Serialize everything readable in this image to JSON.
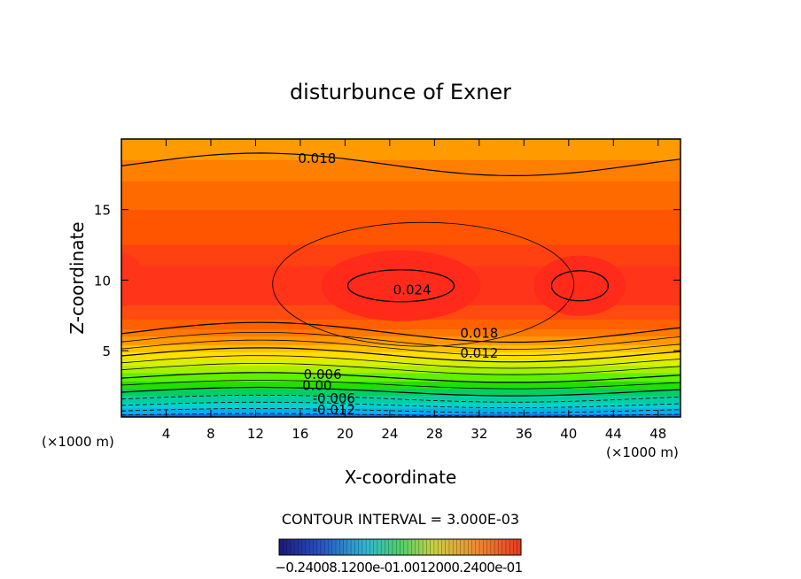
{
  "chart_data": {
    "type": "contour",
    "title": "disturbunce of Exner",
    "xlabel": "X-coordinate",
    "ylabel": "Z-coordinate",
    "x_unit_label": "(×1000 m)",
    "x_unit_label_right": "(×1000 m)",
    "xlim": [
      0,
      50
    ],
    "ylim": [
      0.3,
      20
    ],
    "x_ticks": [
      4,
      8,
      12,
      16,
      20,
      24,
      28,
      32,
      36,
      40,
      44,
      48
    ],
    "x_tick_labels": [
      "4",
      "8",
      "12",
      "16",
      "20",
      "24",
      "28",
      "32",
      "36",
      "40",
      "44",
      "48"
    ],
    "y_ticks": [
      5,
      10,
      15
    ],
    "y_tick_labels": [
      "5",
      "10",
      "15"
    ],
    "contour_interval_text": "CONTOUR INTERVAL = 3.000E-03",
    "contour_labels": [
      {
        "text": "0.018",
        "x": 17.5,
        "z": 18.3
      },
      {
        "text": "0.024",
        "x": 26.0,
        "z": 9.0
      },
      {
        "text": "0.018",
        "x": 32.0,
        "z": 5.9
      },
      {
        "text": "0.012",
        "x": 32.0,
        "z": 4.5
      },
      {
        "text": "0.006",
        "x": 18.0,
        "z": 3.0
      },
      {
        "text": "0.00",
        "x": 17.5,
        "z": 2.2
      },
      {
        "text": "-0.006",
        "x": 19.0,
        "z": 1.3
      },
      {
        "text": "-0.012",
        "x": 19.0,
        "z": 0.5
      }
    ],
    "colorbar_labels": "−0.24008.1200e-01.0012000.2400e-01",
    "value_range": [
      -0.024,
      0.024
    ],
    "colors": {
      "max": "#ff2a1a",
      "min": "#0a64ff"
    }
  }
}
